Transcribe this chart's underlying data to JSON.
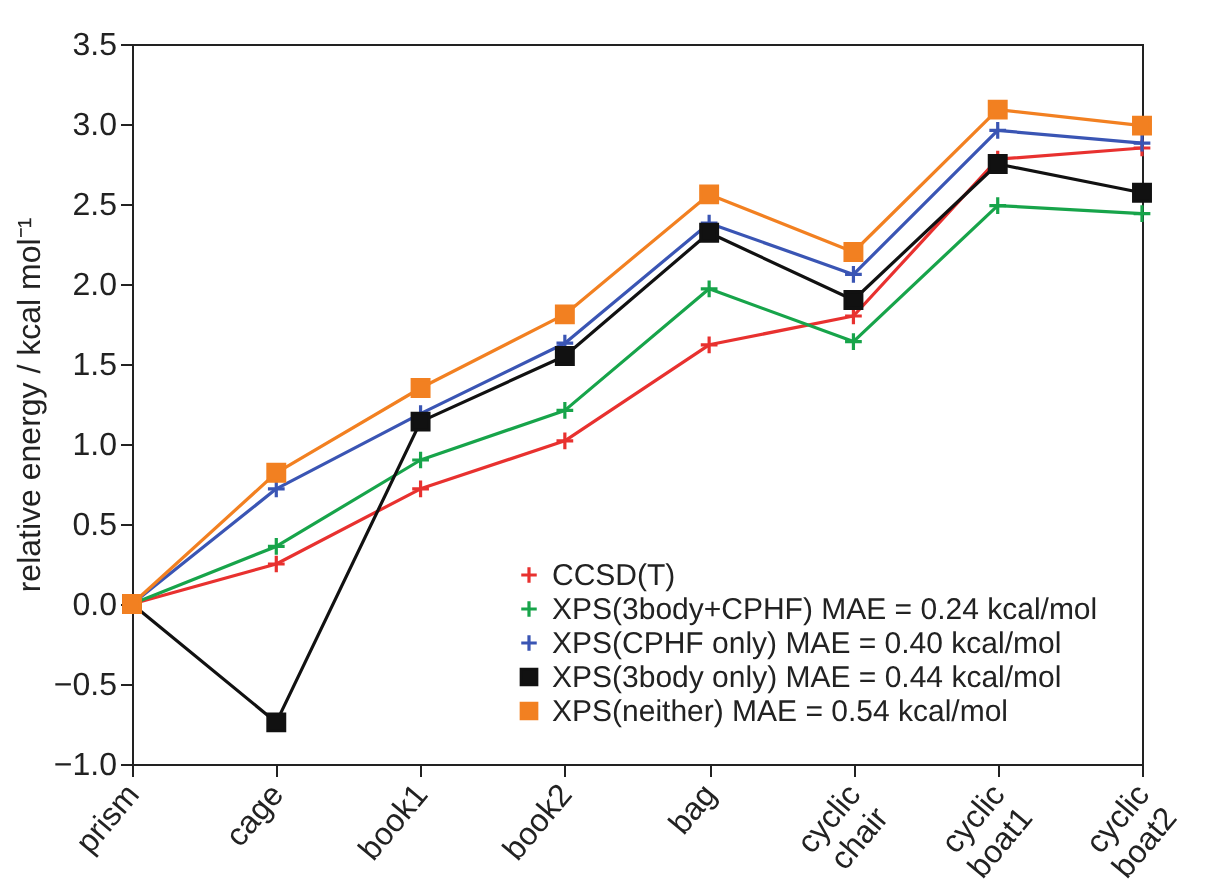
{
  "chart_data": {
    "type": "line",
    "ylabel": "relative energy / kcal mol⁻¹",
    "categories": [
      "prism",
      "cage",
      "book1",
      "book2",
      "bag",
      "cyclic\nchair",
      "cyclic\nboat1",
      "cyclic\nboat2"
    ],
    "ylim": [
      -1,
      3.5
    ],
    "yticks": [
      {
        "value": -1,
        "label": "−1.0"
      },
      {
        "value": -0.5,
        "label": "−0.5"
      },
      {
        "value": 0,
        "label": "0.0"
      },
      {
        "value": 0.5,
        "label": "0.5"
      },
      {
        "value": 1,
        "label": "1.0"
      },
      {
        "value": 1.5,
        "label": "1.5"
      },
      {
        "value": 2,
        "label": "2.0"
      },
      {
        "value": 2.5,
        "label": "2.5"
      },
      {
        "value": 3,
        "label": "3.0"
      },
      {
        "value": 3.5,
        "label": "3.5"
      }
    ],
    "grid": false,
    "legend": "bottom right",
    "series": [
      {
        "name": "CCSD(T)",
        "color": "#e8312f",
        "marker": "cross",
        "values": [
          0,
          0.25,
          0.72,
          1.02,
          1.62,
          1.8,
          2.78,
          2.85
        ]
      },
      {
        "name": "XPS(3body+CPHF)  MAE = 0.24 kcal/mol",
        "color": "#17a44a",
        "marker": "cross",
        "values": [
          0,
          0.36,
          0.9,
          1.21,
          1.97,
          1.64,
          2.49,
          2.44
        ]
      },
      {
        "name": "XPS(CPHF only)  MAE = 0.40 kcal/mol",
        "color": "#3a55b4",
        "marker": "cross",
        "values": [
          0,
          0.72,
          1.19,
          1.63,
          2.38,
          2.06,
          2.96,
          2.88
        ]
      },
      {
        "name": "XPS(3body only)  MAE = 0.44 kcal/mol",
        "color": "#111111",
        "marker": "square",
        "values": [
          0,
          -0.74,
          1.14,
          1.55,
          2.32,
          1.9,
          2.75,
          2.57
        ]
      },
      {
        "name": "XPS(neither)  MAE = 0.54 kcal/mol",
        "color": "#f28021",
        "marker": "square",
        "values": [
          0,
          0.82,
          1.35,
          1.81,
          2.56,
          2.2,
          3.09,
          2.99
        ]
      }
    ]
  }
}
